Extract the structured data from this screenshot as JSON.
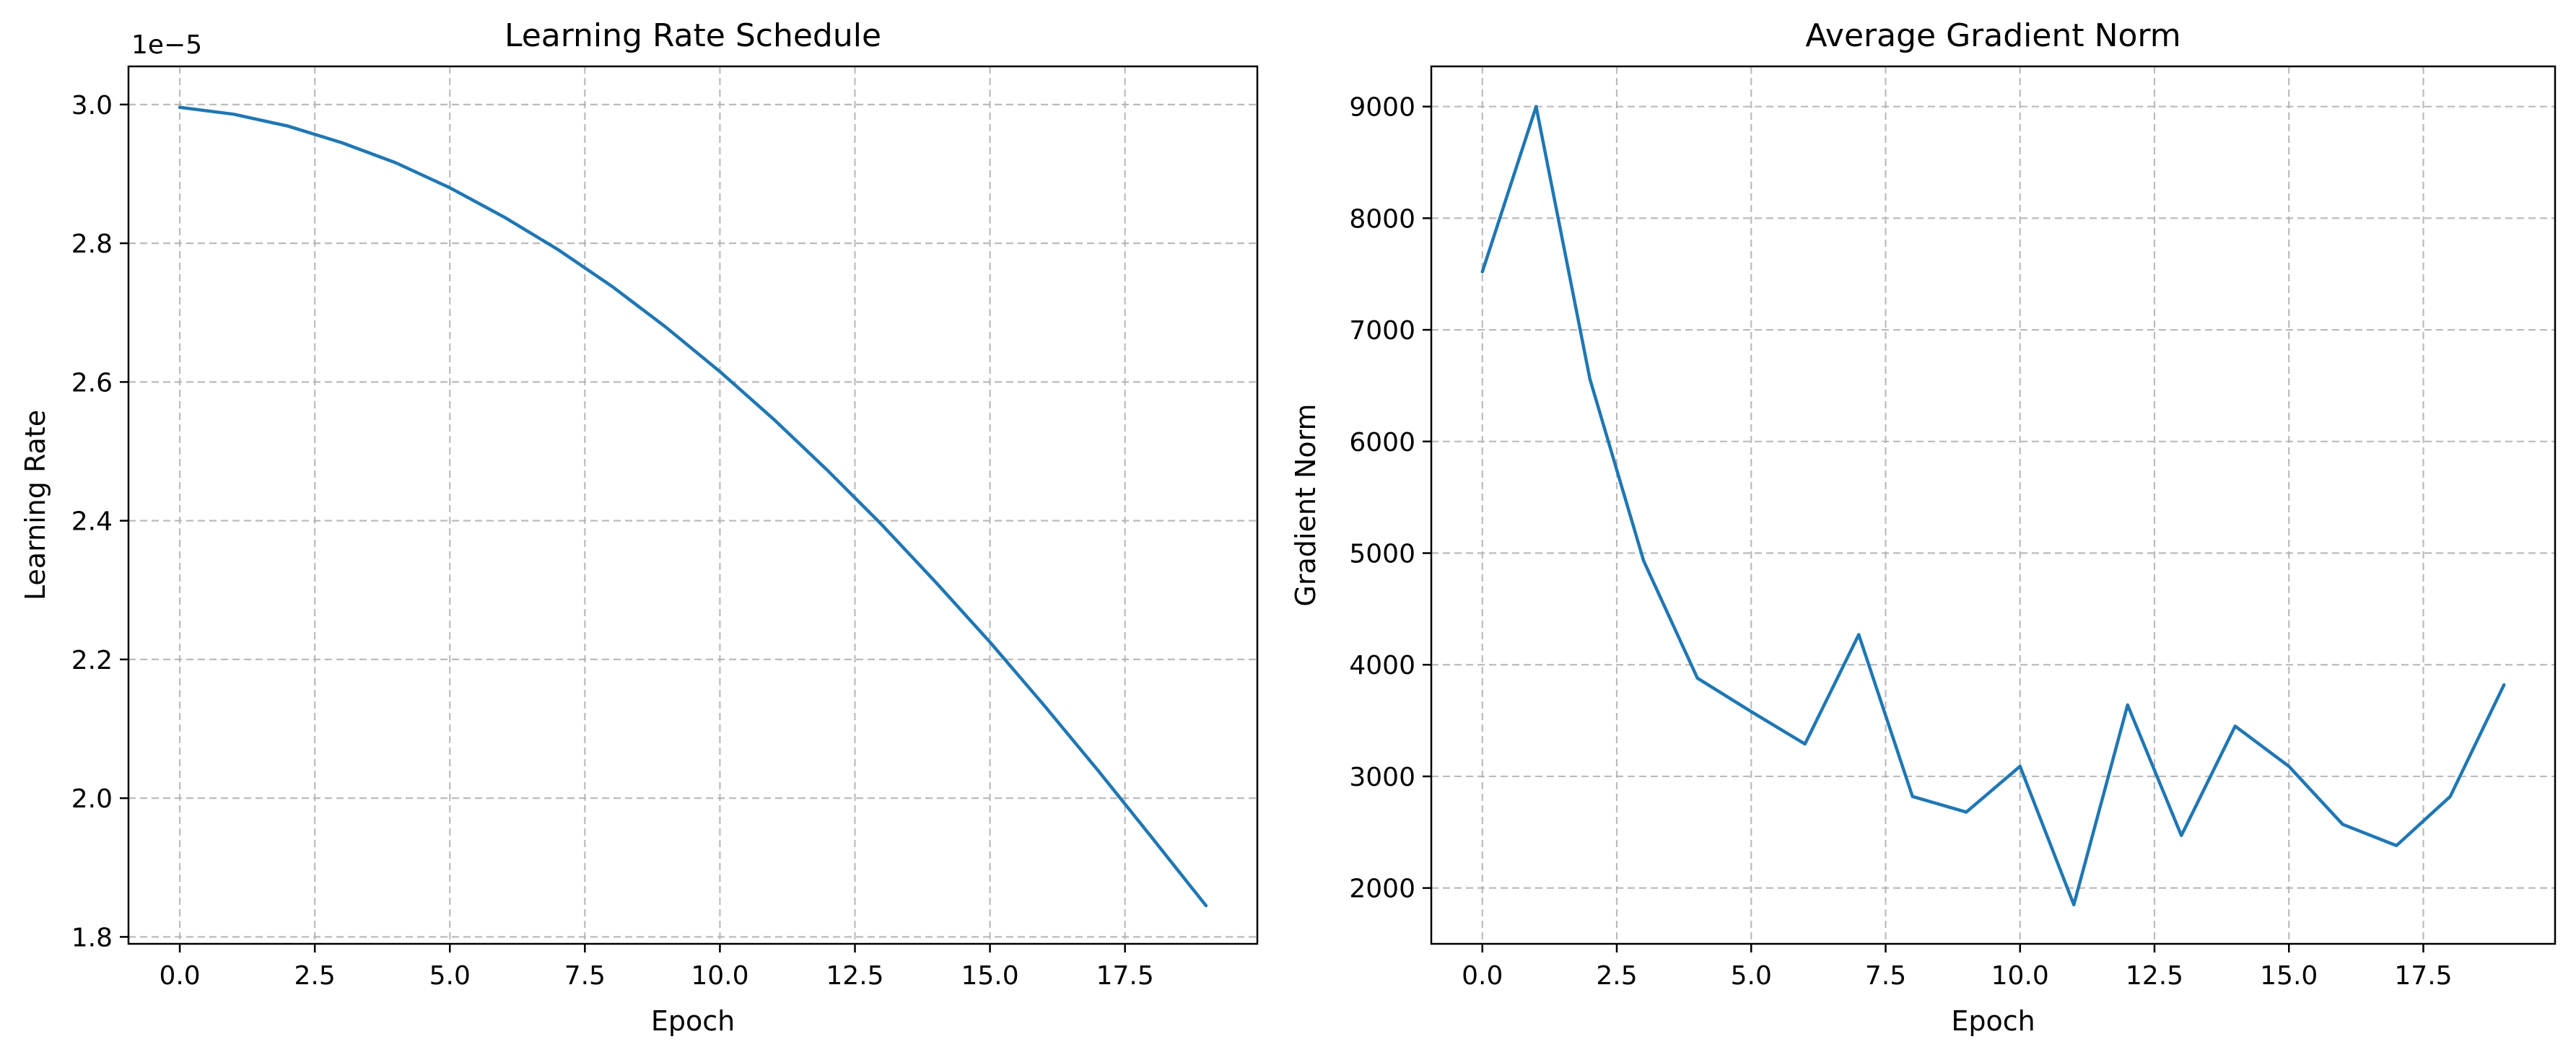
{
  "colors": {
    "series": "#1f77b4",
    "grid": "#b0b0b0",
    "frame": "#000000"
  },
  "chart_data": [
    {
      "type": "line",
      "title": "Learning Rate Schedule",
      "xlabel": "Epoch",
      "ylabel": "Learning Rate",
      "offset_text": "1e−5",
      "grid": true,
      "xlim": [
        -0.95,
        19.95
      ],
      "ylim": [
        1.79,
        3.055
      ],
      "x_ticks": [
        0.0,
        2.5,
        5.0,
        7.5,
        10.0,
        12.5,
        15.0,
        17.5
      ],
      "x_tick_labels": [
        "0.0",
        "2.5",
        "5.0",
        "7.5",
        "10.0",
        "12.5",
        "15.0",
        "17.5"
      ],
      "y_ticks": [
        1.8,
        2.0,
        2.2,
        2.4,
        2.6,
        2.8,
        3.0
      ],
      "y_tick_labels": [
        "1.8",
        "2.0",
        "2.2",
        "2.4",
        "2.6",
        "2.8",
        "3.0"
      ],
      "series": [
        {
          "x": [
            0,
            1,
            2,
            3,
            4,
            5,
            6,
            7,
            8,
            9,
            10,
            11,
            12,
            13,
            14,
            15,
            16,
            17,
            18,
            19
          ],
          "values": [
            2.996,
            2.986,
            2.969,
            2.945,
            2.916,
            2.88,
            2.838,
            2.791,
            2.738,
            2.679,
            2.615,
            2.546,
            2.472,
            2.394,
            2.311,
            2.225,
            2.134,
            2.04,
            1.943,
            1.845
          ]
        }
      ]
    },
    {
      "type": "line",
      "title": "Average Gradient Norm",
      "xlabel": "Epoch",
      "ylabel": "Gradient Norm",
      "grid": true,
      "xlim": [
        -0.95,
        19.95
      ],
      "ylim": [
        1500,
        9360
      ],
      "x_ticks": [
        0.0,
        2.5,
        5.0,
        7.5,
        10.0,
        12.5,
        15.0,
        17.5
      ],
      "x_tick_labels": [
        "0.0",
        "2.5",
        "5.0",
        "7.5",
        "10.0",
        "12.5",
        "15.0",
        "17.5"
      ],
      "y_ticks": [
        2000,
        3000,
        4000,
        5000,
        6000,
        7000,
        8000,
        9000
      ],
      "y_tick_labels": [
        "2000",
        "3000",
        "4000",
        "5000",
        "6000",
        "7000",
        "8000",
        "9000"
      ],
      "series": [
        {
          "x": [
            0,
            1,
            2,
            3,
            4,
            5,
            6,
            7,
            8,
            9,
            10,
            11,
            12,
            13,
            14,
            15,
            16,
            17,
            18,
            19
          ],
          "values": [
            7520,
            9000,
            6560,
            4930,
            3880,
            3580,
            3290,
            4270,
            2820,
            2680,
            3090,
            1850,
            3640,
            2470,
            3450,
            3090,
            2570,
            2380,
            2820,
            3820
          ]
        }
      ]
    }
  ]
}
